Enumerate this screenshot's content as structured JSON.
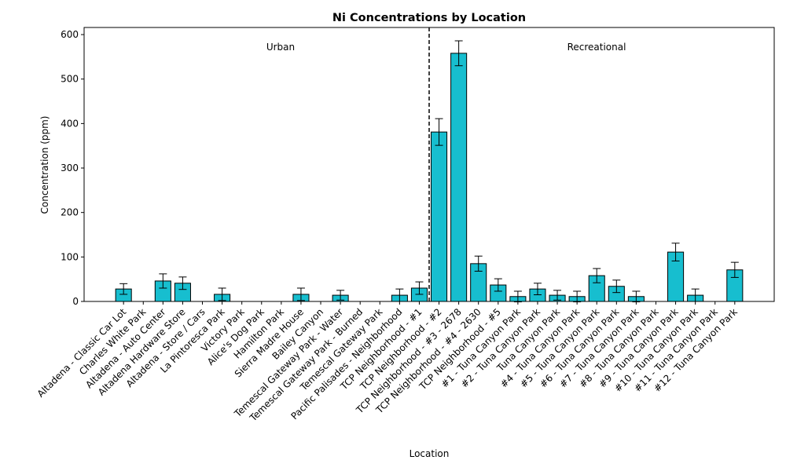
{
  "chart_data": {
    "type": "bar",
    "title": "Ni Concentrations by Location",
    "xlabel": "Location",
    "ylabel": "Concentration (ppm)",
    "annotations": [
      "Urban",
      "Recreational"
    ],
    "categories": [
      "Altadena - Classic Car Lot",
      "Charles White Park",
      "Altadena - Auto Center",
      "Altadena Hardware Store",
      "Altadena - Store / Cars",
      "La Pintoresca Park",
      "Victory Park",
      "Alice's Dog Park",
      "Hamilton Park",
      "Sierra Madre House",
      "Bailey Canyon",
      "Temescal Gateway Park - Water",
      "Temescal Gateway Park - Burned",
      "Temescal Gateway Park",
      "Pacific Palisades - Neighborhood",
      "TCP Neighborhood - #1",
      "TCP Neighborhood - #2",
      "TCP Neighborhood - #3 - 2678",
      "TCP Neighborhood - #4 - 2630",
      "TCP Neighborhood - #5",
      "#1 - Tuna Canyon Park",
      "#2 - Tuna Canyon Park",
      "Tuna Canyon Park",
      "#4 - Tuna Canyon Park",
      "#5 - Tuna Canyon Park",
      "#6 - Tuna Canyon Park",
      "#7 - Tuna Canyon Park",
      "#8 - Tuna Canyon Park",
      "#9 - Tuna Canyon Park",
      "#10 - Tuna Canyon Park",
      "#11 - Tuna Canyon Park",
      "#12 - Tuna Canyon Park"
    ],
    "values": [
      28,
      null,
      46,
      41,
      null,
      16,
      null,
      null,
      null,
      16,
      null,
      14,
      null,
      null,
      14,
      30,
      381,
      558,
      85,
      37,
      11,
      28,
      14,
      11,
      58,
      34,
      11,
      null,
      111,
      14,
      null,
      71
    ],
    "errors": [
      12,
      null,
      16,
      14,
      null,
      14,
      null,
      null,
      null,
      14,
      null,
      11,
      null,
      null,
      14,
      14,
      30,
      28,
      17,
      14,
      12,
      13,
      11,
      12,
      16,
      14,
      12,
      null,
      20,
      14,
      null,
      17
    ],
    "color": "#17becf",
    "edgecolor": "#000000",
    "ylim": [
      0,
      616
    ],
    "yticks": [
      0,
      100,
      200,
      300,
      400,
      500,
      600
    ],
    "grid": false
  }
}
